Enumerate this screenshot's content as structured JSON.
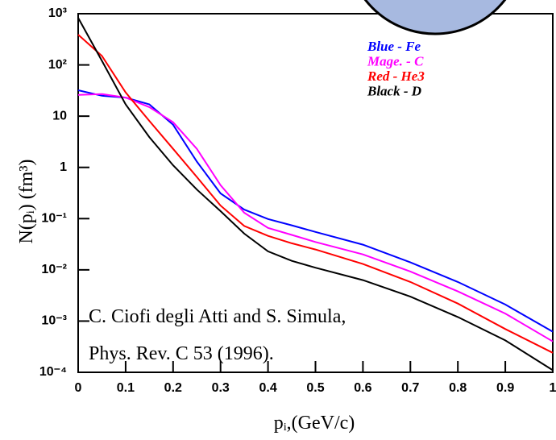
{
  "chart_data": {
    "type": "line",
    "y_scale": "log",
    "xlabel": "pᵢ,(GeV/c)",
    "ylabel": "N(pᵢ) (fm³)",
    "annotations": [
      "C. Ciofi degli Atti and S. Simula,",
      "Phys. Rev. C 53 (1996)."
    ],
    "x": [
      0,
      0.05,
      0.1,
      0.15,
      0.2,
      0.25,
      0.3,
      0.35,
      0.4,
      0.45,
      0.5,
      0.6,
      0.7,
      0.8,
      0.9,
      1
    ],
    "series": [
      {
        "name": "Blue - Fe",
        "color": "#0000ff",
        "values": [
          32,
          25,
          23,
          17,
          6.8,
          1.3,
          0.31,
          0.15,
          0.098,
          0.074,
          0.055,
          0.031,
          0.014,
          0.0058,
          0.0021,
          0.00062
        ]
      },
      {
        "name": "Mage. - C",
        "color": "#ff00ff",
        "values": [
          26,
          27,
          23,
          15,
          7.6,
          2.3,
          0.45,
          0.13,
          0.066,
          0.048,
          0.035,
          0.02,
          0.0093,
          0.0038,
          0.0014,
          0.0004
        ]
      },
      {
        "name": "Red - He3",
        "color": "#ff0000",
        "values": [
          390,
          150,
          29,
          8.1,
          2.3,
          0.65,
          0.18,
          0.072,
          0.046,
          0.033,
          0.025,
          0.013,
          0.0058,
          0.0022,
          0.0007,
          0.00024
        ]
      },
      {
        "name": "Black - D",
        "color": "#000000",
        "values": [
          830,
          120,
          17,
          3.9,
          1.1,
          0.37,
          0.14,
          0.051,
          0.023,
          0.015,
          0.011,
          0.0063,
          0.003,
          0.0012,
          0.00042,
          0.00011
        ]
      }
    ],
    "xlim": [
      0,
      1
    ],
    "ylim": [
      0.0001,
      1000
    ],
    "xticks": [
      0,
      0.1,
      0.2,
      0.3,
      0.4,
      0.5,
      0.6,
      0.7,
      0.8,
      0.9,
      1
    ],
    "yticks": [
      {
        "value": 0.0001,
        "label": "10⁻⁴"
      },
      {
        "value": 0.001,
        "label": "10⁻³"
      },
      {
        "value": 0.01,
        "label": "10⁻²"
      },
      {
        "value": 0.1,
        "label": "10⁻¹"
      },
      1,
      10,
      {
        "value": 100,
        "label": "10²"
      },
      {
        "value": 1000,
        "label": "10³"
      }
    ]
  }
}
